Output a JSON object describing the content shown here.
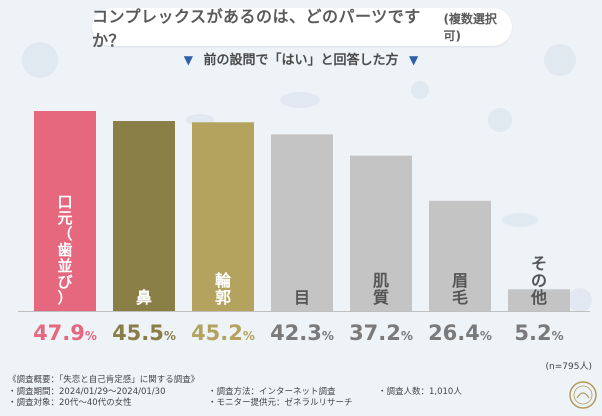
{
  "header": {
    "title": "コンプレックスがあるのは、どのパーツですか？",
    "title_note": "(複数選択可)",
    "subtitle": "前の設問で「はい」と回答した方"
  },
  "chart_data": {
    "type": "bar",
    "categories": [
      "口元（歯並び）",
      "鼻",
      "輪郭",
      "目",
      "肌質",
      "眉毛",
      "その他"
    ],
    "values": [
      47.9,
      45.5,
      45.2,
      42.3,
      37.2,
      26.4,
      5.2
    ],
    "value_labels": [
      {
        "num": "47.9",
        "unit": "%"
      },
      {
        "num": "45.5",
        "unit": "%"
      },
      {
        "num": "45.2",
        "unit": "%"
      },
      {
        "num": "42.3",
        "unit": "%"
      },
      {
        "num": "37.2",
        "unit": "%"
      },
      {
        "num": "26.4",
        "unit": "%"
      },
      {
        "num": "5.2",
        "unit": "%"
      }
    ],
    "bar_colors": [
      "#e5687f",
      "#8a7e47",
      "#b3a35e",
      "#c4c4c4",
      "#c4c4c4",
      "#c4c4c4",
      "#c4c4c4"
    ],
    "label_colors": [
      "#e5687f",
      "#8a7e47",
      "#b3a35e",
      "#7a7a7a",
      "#7a7a7a",
      "#7a7a7a",
      "#7a7a7a"
    ],
    "sample_note": "(n=795人)",
    "ylim": [
      0,
      50
    ]
  },
  "footer": {
    "overview": "《調査概要：「失恋と自己肯定感」に関する調査》",
    "period": "・調査期間：2024/01/29〜2024/01/30",
    "method": "・調査方法：インターネット調査",
    "count": "・調査人数：1,010人",
    "target": "・調査対象：20代〜40代の女性",
    "provider": "・モニター提供元：ゼネラルリサーチ"
  },
  "colors": {
    "accent_blue": "#2e5fa8"
  }
}
